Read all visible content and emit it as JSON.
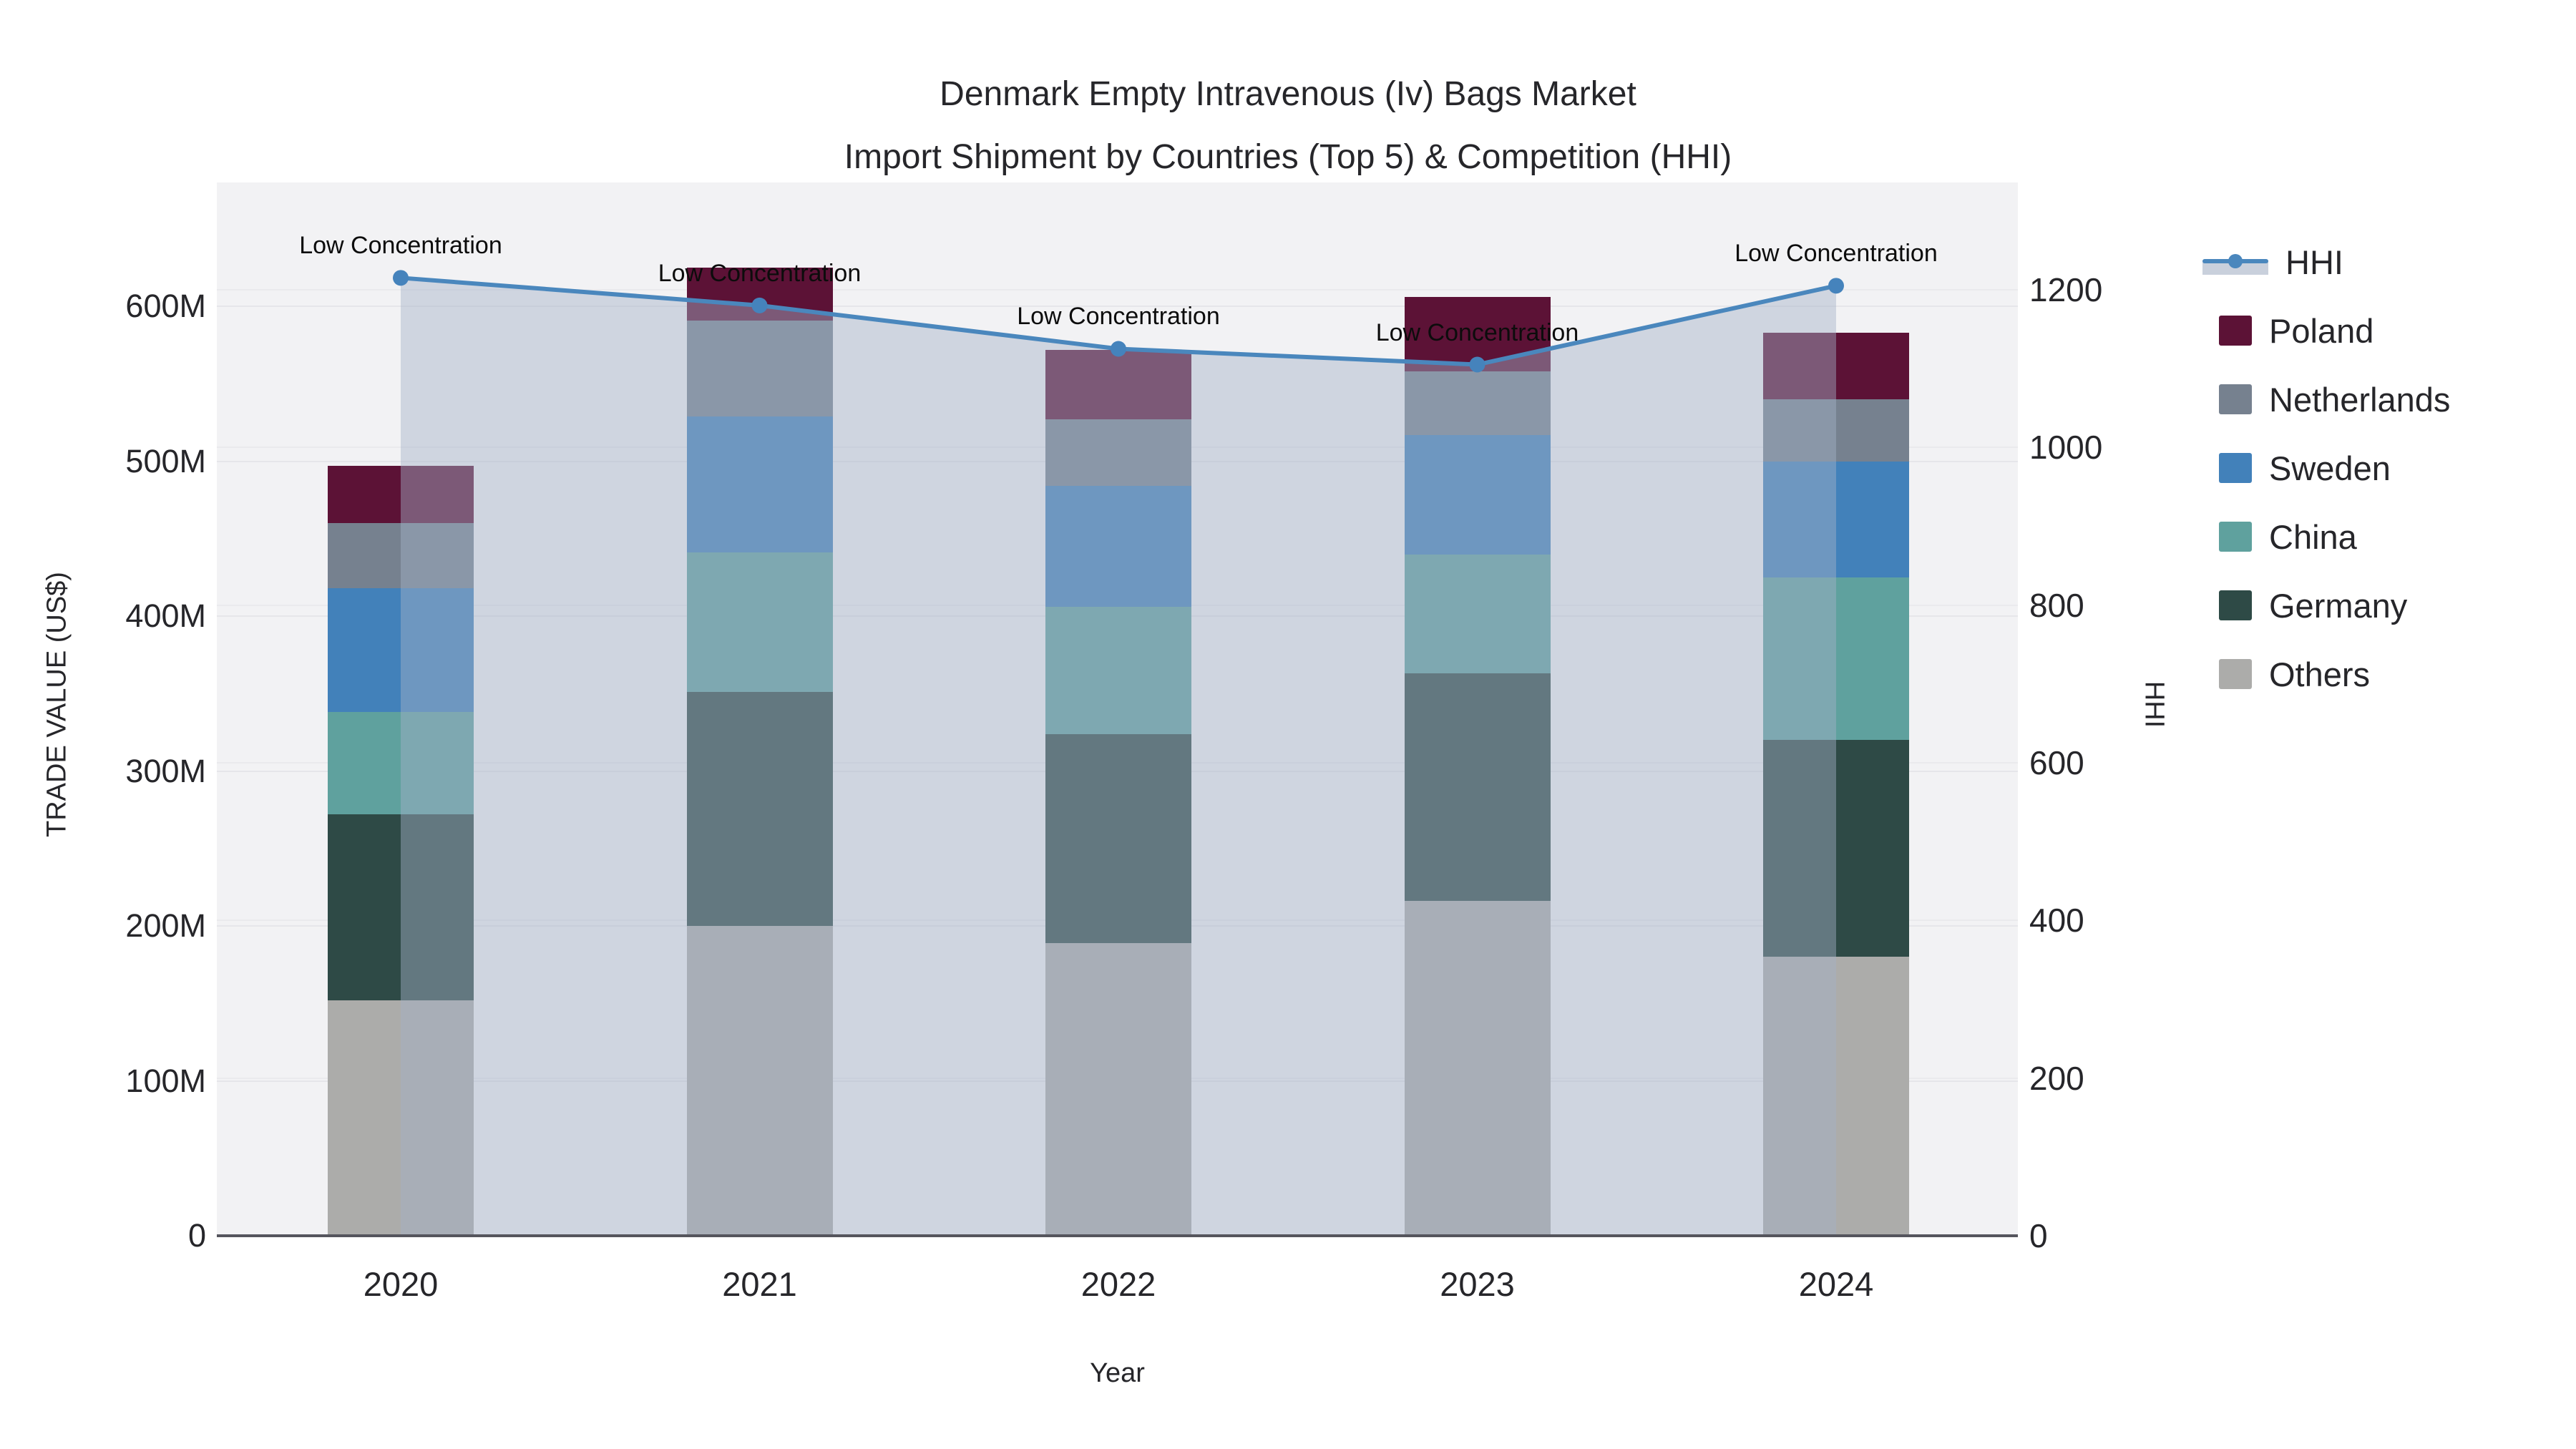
{
  "title": {
    "line1": "Denmark Empty Intravenous (Iv) Bags Market",
    "line2": "Import Shipment by Countries (Top 5) & Competition (HHI)"
  },
  "axes": {
    "y_left": {
      "title": "TRADE VALUE (US$)",
      "tick_labels": [
        "0",
        "100M",
        "200M",
        "300M",
        "400M",
        "500M",
        "600M"
      ],
      "tick_values": [
        0,
        100,
        200,
        300,
        400,
        500,
        600
      ],
      "max": 680
    },
    "y_right": {
      "title": "HHI",
      "tick_labels": [
        "0",
        "200",
        "400",
        "600",
        "800",
        "1000",
        "1200"
      ],
      "tick_values": [
        0,
        200,
        400,
        600,
        800,
        1000,
        1200
      ],
      "max": 1336
    },
    "x": {
      "title": "Year",
      "tick_labels": [
        "2020",
        "2021",
        "2022",
        "2023",
        "2024"
      ]
    }
  },
  "legend": {
    "items": [
      {
        "label": "HHI",
        "type": "line",
        "color": "#4a87bd",
        "band": "#c9d0dc"
      },
      {
        "label": "Poland",
        "type": "box",
        "color": "#5c1236"
      },
      {
        "label": "Netherlands",
        "type": "box",
        "color": "#76818f"
      },
      {
        "label": "Sweden",
        "type": "box",
        "color": "#4281ba"
      },
      {
        "label": "China",
        "type": "box",
        "color": "#5fa19e"
      },
      {
        "label": "Germany",
        "type": "box",
        "color": "#2e4a46"
      },
      {
        "label": "Others",
        "type": "box",
        "color": "#acacaa"
      }
    ]
  },
  "chart_data": {
    "type": "bar",
    "subtype": "stacked-bars-with-line-overlay",
    "title": "Denmark Empty Intravenous (Iv) Bags Market — Import Shipment by Countries (Top 5) & Competition (HHI)",
    "categories": [
      "2020",
      "2021",
      "2022",
      "2023",
      "2024"
    ],
    "value_unit": "Million US$",
    "series": [
      {
        "name": "Others",
        "color": "#acacaa",
        "values": [
          152,
          200,
          189,
          216,
          180
        ]
      },
      {
        "name": "Germany",
        "color": "#2e4a46",
        "values": [
          120,
          151,
          135,
          147,
          140
        ]
      },
      {
        "name": "China",
        "color": "#5fa19e",
        "values": [
          66,
          90,
          82,
          77,
          105
        ]
      },
      {
        "name": "Sweden",
        "color": "#4281ba",
        "values": [
          80,
          88,
          78,
          77,
          75
        ]
      },
      {
        "name": "Netherlands",
        "color": "#76818f",
        "values": [
          42,
          62,
          43,
          41,
          40
        ]
      },
      {
        "name": "Poland",
        "color": "#5c1236",
        "values": [
          37,
          34,
          45,
          48,
          43
        ]
      }
    ],
    "totals": [
      497,
      625,
      572,
      606,
      583
    ],
    "line_series": {
      "name": "HHI",
      "axis": "right",
      "color": "#4a87bd",
      "marker_color": "#4583bc",
      "fill_color": "rgba(163,177,200,0.45)",
      "values": [
        1215,
        1180,
        1125,
        1105,
        1205
      ],
      "annotations": [
        "Low Concentration",
        "Low Concentration",
        "Low Concentration",
        "Low Concentration",
        "Low Concentration"
      ]
    },
    "xlabel": "Year",
    "ylabel": "TRADE VALUE (US$)",
    "ylabel_right": "HHI",
    "ylim_left": [
      0,
      680
    ],
    "ylim_right": [
      0,
      1336
    ],
    "grid": true,
    "legend_position": "right",
    "plot_bg": "#f2f2f4"
  }
}
